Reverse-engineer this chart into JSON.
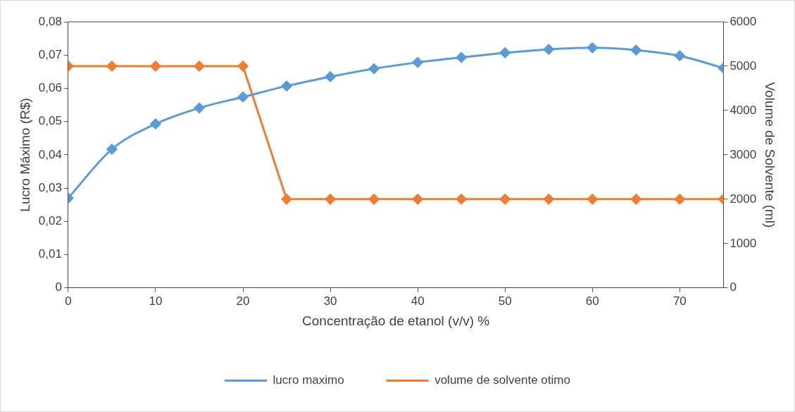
{
  "chart_data": {
    "type": "line",
    "xlabel": "Concentração de etanol (v/v) %",
    "ylabel": "Lucro Máximo (R$)",
    "y2label": "Volume de Solvente (ml)",
    "x": [
      0,
      5,
      10,
      15,
      20,
      25,
      30,
      35,
      40,
      45,
      50,
      55,
      60,
      65,
      70,
      75
    ],
    "series": [
      {
        "name": "lucro maximo",
        "color": "#5b9bd5",
        "values": [
          0.027,
          0.0417,
          0.0493,
          0.0541,
          0.0574,
          0.0607,
          0.0635,
          0.0659,
          0.0678,
          0.0693,
          0.0707,
          0.0717,
          0.0722,
          0.0715,
          0.0698,
          0.0661
        ]
      },
      {
        "name": "volume de solvente otimo",
        "color": "#ed7d31",
        "axis": "y2",
        "values": [
          5000,
          5000,
          5000,
          5000,
          5000,
          2000,
          2000,
          2000,
          2000,
          2000,
          2000,
          2000,
          2000,
          2000,
          2000,
          2000
        ]
      }
    ],
    "xlim": [
      0,
      75
    ],
    "xticks": [
      0,
      10,
      20,
      30,
      40,
      50,
      60,
      70
    ],
    "ylim": [
      0,
      0.08
    ],
    "yticks": [
      {
        "value": 0,
        "label": "0"
      },
      {
        "value": 0.01,
        "label": "0,01"
      },
      {
        "value": 0.02,
        "label": "0,02"
      },
      {
        "value": 0.03,
        "label": "0,03"
      },
      {
        "value": 0.04,
        "label": "0,04"
      },
      {
        "value": 0.05,
        "label": "0,05"
      },
      {
        "value": 0.06,
        "label": "0,06"
      },
      {
        "value": 0.07,
        "label": "0,07"
      },
      {
        "value": 0.08,
        "label": "0,08"
      }
    ],
    "y2lim": [
      0,
      6000
    ],
    "y2ticks": [
      0,
      1000,
      2000,
      3000,
      4000,
      5000,
      6000
    ],
    "grid": false,
    "legend": "bottom",
    "marker": "diamond",
    "line_style": "solid"
  }
}
